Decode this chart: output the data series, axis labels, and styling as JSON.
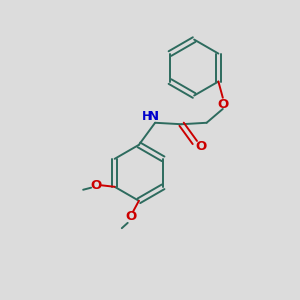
{
  "bg_color": "#dcdcdc",
  "bond_color": "#2d6b5e",
  "O_color": "#cc0000",
  "N_color": "#0000cc",
  "line_width": 1.4,
  "font_size": 8.5,
  "figsize": [
    3.0,
    3.0
  ],
  "dpi": 100,
  "xlim": [
    0,
    10
  ],
  "ylim": [
    0,
    10
  ]
}
